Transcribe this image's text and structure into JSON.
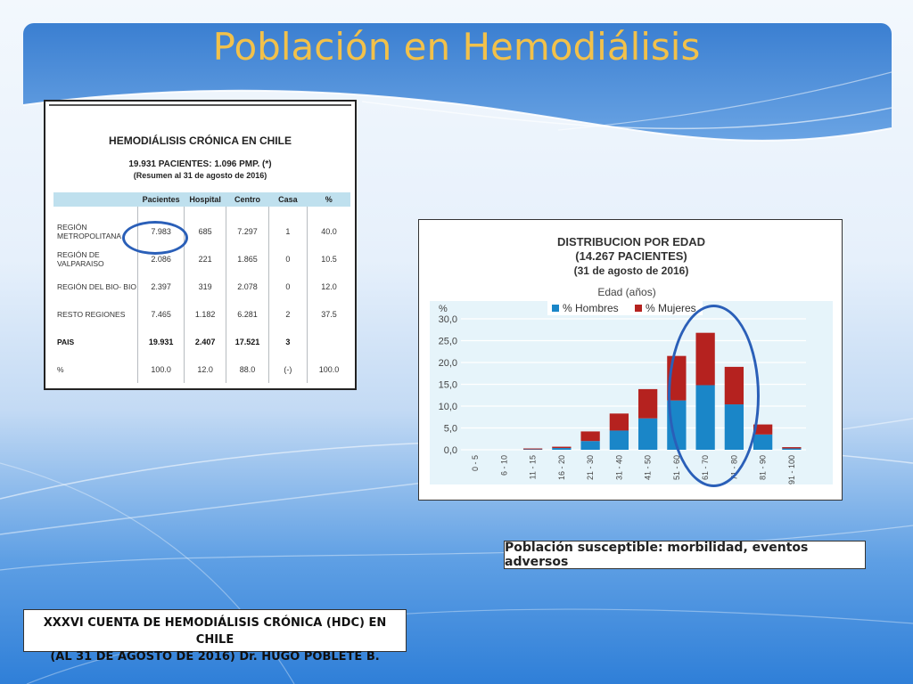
{
  "slide": {
    "title": "Población en Hemodiálisis",
    "callout": "Población susceptible: morbilidad, eventos adversos",
    "source_line1": "XXXVI CUENTA DE HEMODIÁLISIS CRÓNICA (HDC) EN CHILE",
    "source_line2": "(AL 31 DE AGOSTO DE 2016) Dr. HUGO POBLETE B."
  },
  "table": {
    "title": "HEMODIÁLISIS CRÓNICA EN CHILE",
    "subtitle": "19.931 PACIENTES: 1.096 PMP. (*)",
    "subtitle2": "(Resumen al 31 de agosto de 2016)",
    "headers": [
      "",
      "Pacientes",
      "Hospital",
      "Centro",
      "Casa",
      "%"
    ],
    "rows": [
      [
        "REGIÓN METROPOLITANA",
        "7.983",
        "685",
        "7.297",
        "1",
        "40.0"
      ],
      [
        "REGIÓN DE VALPARAISO",
        "2.086",
        "221",
        "1.865",
        "0",
        "10.5"
      ],
      [
        "REGIÓN DEL BIO- BIO",
        "2.397",
        "319",
        "2.078",
        "0",
        "12.0"
      ],
      [
        "RESTO REGIONES",
        "7.465",
        "1.182",
        "6.281",
        "2",
        "37.5"
      ],
      [
        "PAIS",
        "19.931",
        "2.407",
        "17.521",
        "3",
        ""
      ],
      [
        "%",
        "100.0",
        "12.0",
        "88.0",
        "(-)",
        "100.0"
      ]
    ]
  },
  "chart_data": {
    "type": "bar",
    "stacked": true,
    "title": "DISTRIBUCION POR EDAD",
    "subtitle": "(14.267 PACIENTES)",
    "subtitle2": "(31 de agosto de 2016)",
    "xlabel": "Edad (años)",
    "ylabel": "%",
    "ylim": [
      0,
      30
    ],
    "yticks": [
      "0,0",
      "5,0",
      "10,0",
      "15,0",
      "20,0",
      "25,0",
      "30,0"
    ],
    "grid": true,
    "legend_position": "top",
    "categories": [
      "0 - 5",
      "6 - 10",
      "11 - 15",
      "16 - 20",
      "21 - 30",
      "31 - 40",
      "41 - 50",
      "51 - 60",
      "61 - 70",
      "71 - 80",
      "81 - 90",
      "91 - 100"
    ],
    "series": [
      {
        "name": "% Hombres",
        "color": "#1a86c8",
        "values": [
          0.0,
          0.0,
          0.1,
          0.4,
          2.0,
          4.4,
          7.2,
          11.3,
          14.8,
          10.4,
          3.5,
          0.3
        ]
      },
      {
        "name": "% Mujeres",
        "color": "#b5221f",
        "values": [
          0.0,
          0.0,
          0.2,
          0.3,
          2.2,
          3.9,
          6.7,
          10.2,
          12.0,
          8.6,
          2.3,
          0.3
        ]
      }
    ]
  }
}
